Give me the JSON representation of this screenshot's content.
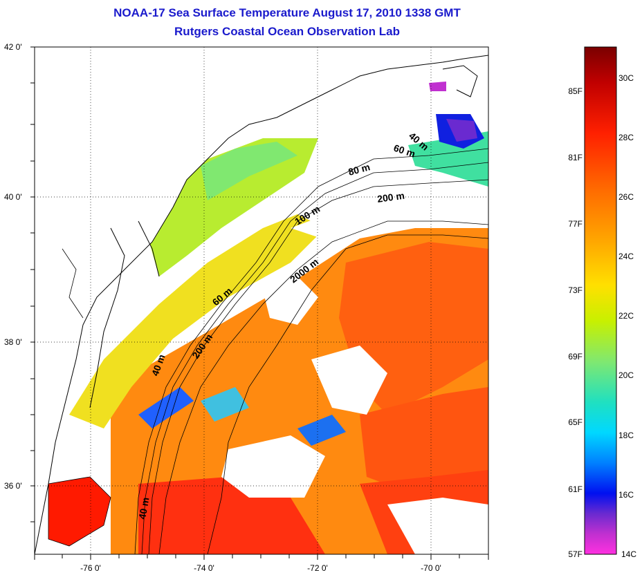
{
  "header": {
    "title": "NOAA-17 Sea Surface Temperature August 17, 2010 1338 GMT",
    "subtitle": "Rutgers Coastal Ocean Observation Lab"
  },
  "map": {
    "lat_labels": [
      "42 0'",
      "40 0'",
      "38 0'",
      "36 0'"
    ],
    "lon_labels": [
      "-76 0'",
      "-74 0'",
      "-72 0'",
      "-70 0'"
    ],
    "contour_labels": [
      "40 m",
      "60 m",
      "80 m",
      "200 m",
      "100 m",
      "2000 m",
      "60 m",
      "200 m",
      "40 m",
      "40 m"
    ]
  },
  "colorbar": {
    "fahrenheit_labels": [
      "85F",
      "81F",
      "77F",
      "73F",
      "69F",
      "65F",
      "61F",
      "57F"
    ],
    "celsius_labels": [
      "30C",
      "28C",
      "26C",
      "24C",
      "22C",
      "20C",
      "18C",
      "16C",
      "14C"
    ],
    "colors": [
      "#7a0000",
      "#c00000",
      "#ff2000",
      "#ff6a00",
      "#ffa500",
      "#ffe000",
      "#c8f000",
      "#80e870",
      "#20e0c0",
      "#00d8ff",
      "#0080ff",
      "#0010f0",
      "#6a2ad0",
      "#c030d0",
      "#ff30e0"
    ]
  }
}
